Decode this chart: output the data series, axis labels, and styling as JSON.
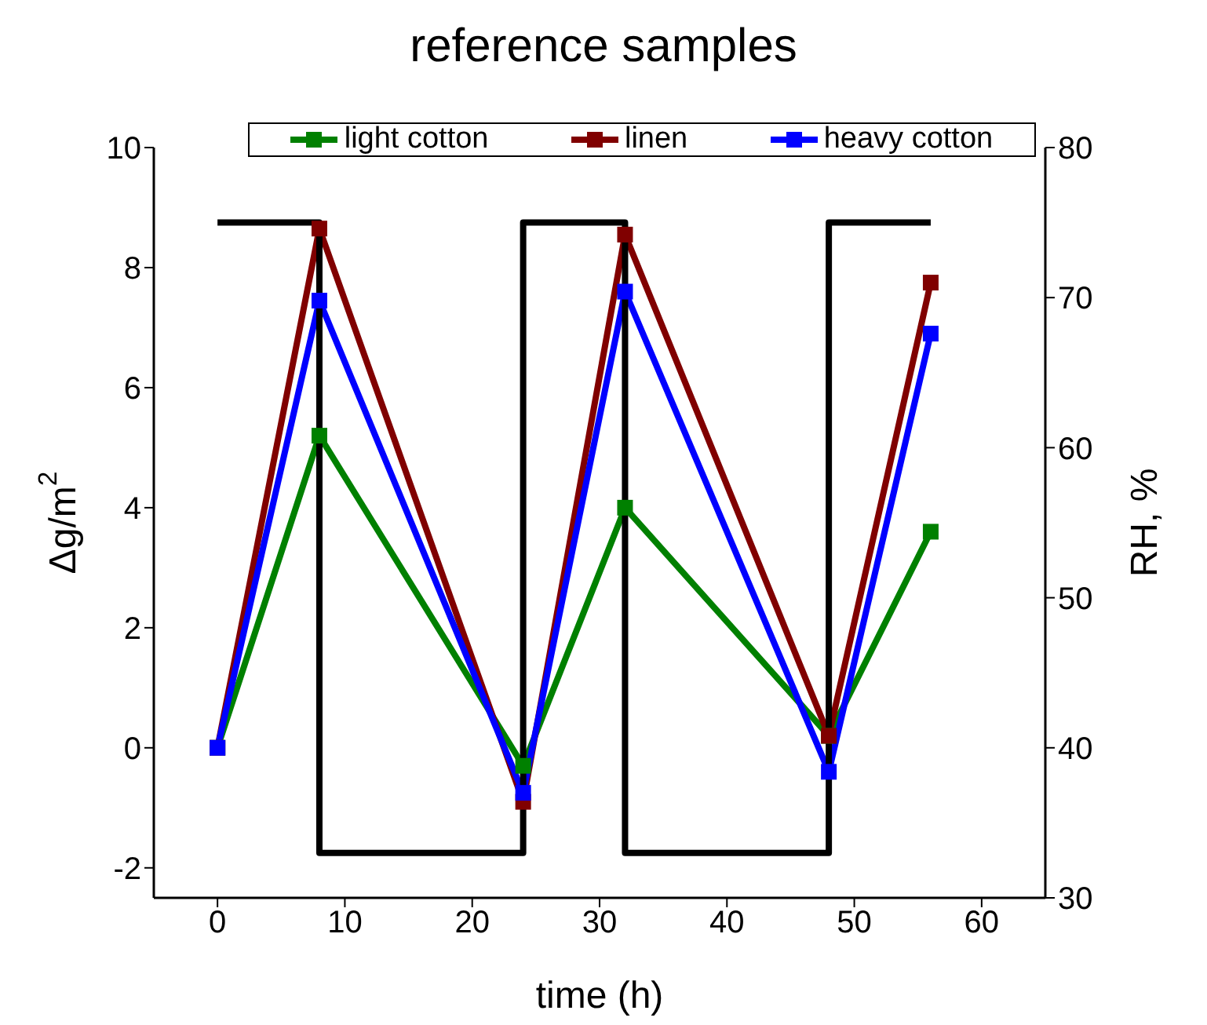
{
  "chart_data": {
    "type": "line",
    "title": "reference samples",
    "xlabel": "time (h)",
    "ylabel": "Δg/m$^{2}$",
    "y2label": "RH, %",
    "x": [
      0,
      8,
      24,
      32,
      48,
      56
    ],
    "series": [
      {
        "name": "light cotton",
        "color": "#008000",
        "values": [
          0,
          5.2,
          -0.3,
          4.0,
          0.2,
          3.6
        ]
      },
      {
        "name": "linen",
        "color": "#800000",
        "values": [
          0,
          8.65,
          -0.9,
          8.55,
          0.2,
          7.75
        ]
      },
      {
        "name": "heavy cotton",
        "color": "#0000ff",
        "values": [
          0,
          7.45,
          -0.75,
          7.6,
          -0.4,
          6.9
        ]
      },
      {
        "type": "step",
        "axis": "y2",
        "color": "#000000",
        "marker": "none",
        "x": [
          0,
          8,
          24,
          32,
          48,
          56
        ],
        "values": [
          75,
          33,
          75,
          33,
          75,
          75
        ]
      }
    ],
    "xlim": [
      -5,
      65
    ],
    "xticks": [
      0,
      10,
      20,
      30,
      40,
      50,
      60
    ],
    "ylim": [
      -2.5,
      10
    ],
    "yticks": [
      -2,
      0,
      2,
      4,
      6,
      8,
      10
    ],
    "y2lim": [
      30,
      80
    ],
    "y2ticks": [
      30,
      40,
      50,
      60,
      70,
      80
    ],
    "grid": false,
    "legend": "top",
    "marker": "square",
    "line_style": "solid"
  }
}
